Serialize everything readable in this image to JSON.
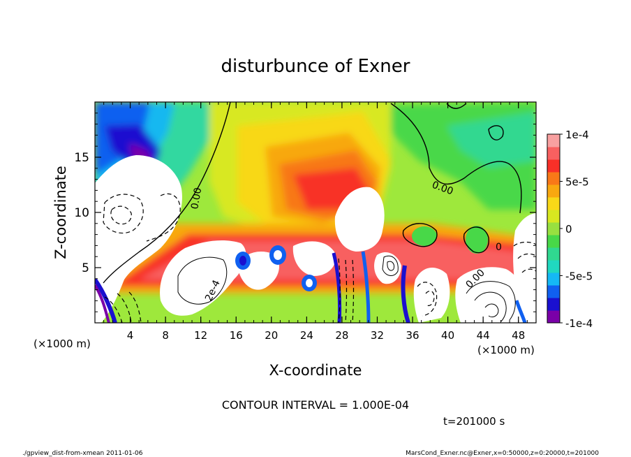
{
  "chart_data": {
    "type": "heatmap",
    "title": "disturbunce of Exner",
    "xlabel": "X-coordinate",
    "ylabel": "Z-coordinate",
    "x_unit_label": "(×1000 m)",
    "z_unit_label": "(×1000 m)",
    "xlim": [
      0,
      50
    ],
    "ylim": [
      0,
      20
    ],
    "x_ticks": [
      4,
      8,
      12,
      16,
      20,
      24,
      28,
      32,
      36,
      40,
      44,
      48
    ],
    "y_ticks": [
      5,
      10,
      15
    ],
    "colorbar": {
      "range": [
        -0.0001,
        0.0001
      ],
      "tick_labels": [
        "1e-4",
        "5e-5",
        "0",
        "-5e-5",
        "-1e-4"
      ],
      "tick_values": [
        0.0001,
        5e-05,
        0,
        -5e-05,
        -0.0001
      ],
      "colors": [
        "#7a00a8",
        "#1a10d0",
        "#1060f0",
        "#15b8f5",
        "#20d8c0",
        "#30d890",
        "#48d848",
        "#98e040",
        "#d8e820",
        "#f8d818",
        "#f8a810",
        "#f87818",
        "#f83028",
        "#f86060",
        "#f8a0a0"
      ]
    },
    "contour_labels": [
      "0.00",
      "0.00",
      "2e-4",
      "0.00",
      "0"
    ],
    "contour_interval_text": "CONTOUR INTERVAL = 1.000E-04",
    "time_text": "t=201000 s"
  },
  "footer": {
    "left": "./gpview_dist-from-xmean  2011-01-06",
    "right": "MarsCond_Exner.nc@Exner,x=0:50000,z=0:20000,t=201000"
  }
}
